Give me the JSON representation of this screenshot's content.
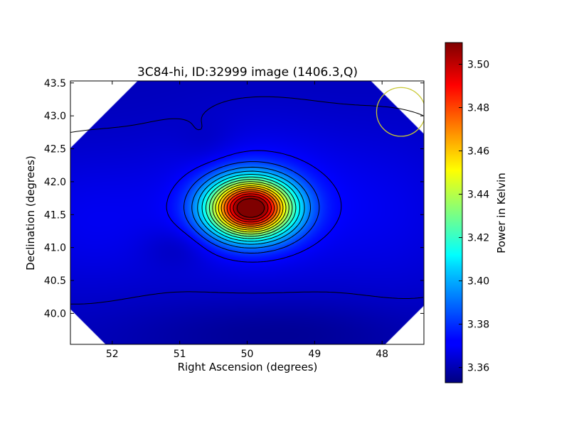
{
  "chart_data": {
    "type": "heatmap",
    "title": "3C84-hi, ID:32999 image (1406.3,Q)",
    "xlabel": "Right Ascension (degrees)",
    "ylabel": "Declination (degrees)",
    "x_reversed": true,
    "xlim": [
      52.62,
      47.38
    ],
    "ylim": [
      39.53,
      43.53
    ],
    "xticks": [
      52,
      51,
      50,
      49,
      48
    ],
    "yticks": [
      40.0,
      40.5,
      41.0,
      41.5,
      42.0,
      42.5,
      43.0,
      43.5
    ],
    "xtick_labels": [
      "52",
      "51",
      "50",
      "49",
      "48"
    ],
    "ytick_labels": [
      "40.0",
      "40.5",
      "41.0",
      "41.5",
      "42.0",
      "42.5",
      "43.0",
      "43.5"
    ],
    "colorbar": {
      "label": "Power in Kelvin",
      "colormap": "jet",
      "min": 3.353,
      "max": 3.51,
      "ticks": [
        3.36,
        3.38,
        3.4,
        3.42,
        3.44,
        3.46,
        3.48,
        3.5
      ],
      "tick_labels": [
        "3.36",
        "3.38",
        "3.40",
        "3.42",
        "3.44",
        "3.46",
        "3.48",
        "3.50"
      ]
    },
    "peak": {
      "ra": 49.95,
      "dec": 41.6,
      "value": 3.51
    },
    "beam_circle": {
      "ra": 47.72,
      "dec": 43.06,
      "radius_deg": 0.37,
      "color": "#c8c832"
    },
    "contour_color": "#000000",
    "grid": false
  }
}
